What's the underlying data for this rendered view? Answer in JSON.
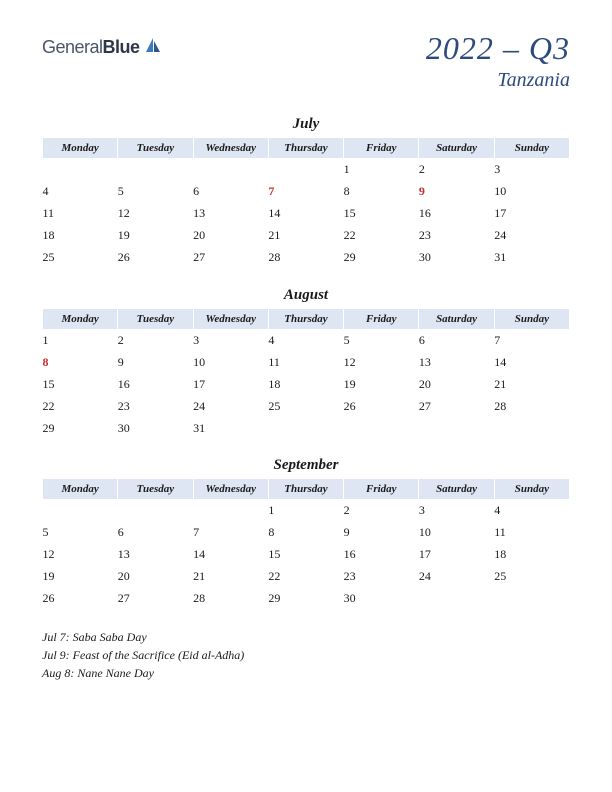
{
  "logo": {
    "word1": "General",
    "word2": "Blue"
  },
  "header": {
    "quarter": "2022 – Q3",
    "country": "Tanzania"
  },
  "style": {
    "header_bg": "#dde6f2",
    "accent_color": "#2c4a7c",
    "holiday_color": "#c03030",
    "text_color": "#1a1a1a",
    "page_bg": "#ffffff"
  },
  "day_headers": [
    "Monday",
    "Tuesday",
    "Wednesday",
    "Thursday",
    "Friday",
    "Saturday",
    "Sunday"
  ],
  "months": [
    {
      "name": "July",
      "weeks": [
        [
          "",
          "",
          "",
          "",
          "1",
          "2",
          "3"
        ],
        [
          "4",
          "5",
          "6",
          "7",
          "8",
          "9",
          "10"
        ],
        [
          "11",
          "12",
          "13",
          "14",
          "15",
          "16",
          "17"
        ],
        [
          "18",
          "19",
          "20",
          "21",
          "22",
          "23",
          "24"
        ],
        [
          "25",
          "26",
          "27",
          "28",
          "29",
          "30",
          "31"
        ]
      ],
      "holidays": [
        "7",
        "9"
      ]
    },
    {
      "name": "August",
      "weeks": [
        [
          "1",
          "2",
          "3",
          "4",
          "5",
          "6",
          "7"
        ],
        [
          "8",
          "9",
          "10",
          "11",
          "12",
          "13",
          "14"
        ],
        [
          "15",
          "16",
          "17",
          "18",
          "19",
          "20",
          "21"
        ],
        [
          "22",
          "23",
          "24",
          "25",
          "26",
          "27",
          "28"
        ],
        [
          "29",
          "30",
          "31",
          "",
          "",
          "",
          ""
        ]
      ],
      "holidays": [
        "8"
      ]
    },
    {
      "name": "September",
      "weeks": [
        [
          "",
          "",
          "",
          "1",
          "2",
          "3",
          "4"
        ],
        [
          "5",
          "6",
          "7",
          "8",
          "9",
          "10",
          "11"
        ],
        [
          "12",
          "13",
          "14",
          "15",
          "16",
          "17",
          "18"
        ],
        [
          "19",
          "20",
          "21",
          "22",
          "23",
          "24",
          "25"
        ],
        [
          "26",
          "27",
          "28",
          "29",
          "30",
          "",
          ""
        ]
      ],
      "holidays": []
    }
  ],
  "holiday_list": [
    "Jul 7: Saba Saba Day",
    "Jul 9: Feast of the Sacrifice (Eid al-Adha)",
    "Aug 8: Nane Nane Day"
  ]
}
